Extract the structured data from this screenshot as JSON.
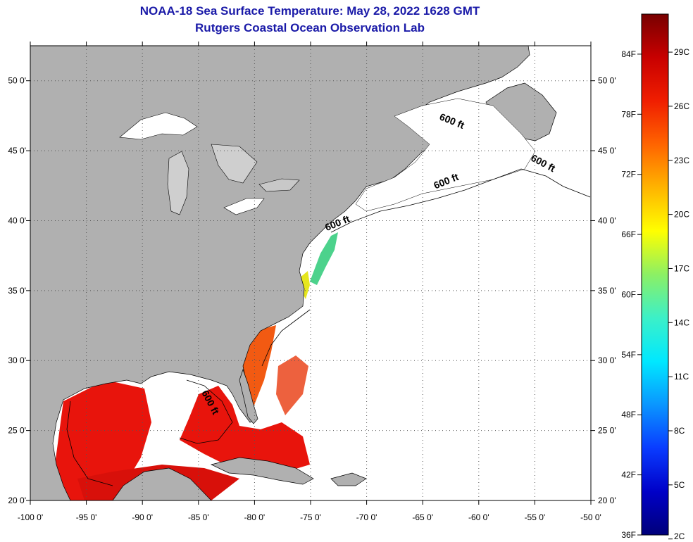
{
  "header": {
    "title": "NOAA-18 Sea Surface Temperature:  May 28, 2022 1628 GMT",
    "subtitle": "Rutgers Coastal Ocean Observation Lab"
  },
  "map": {
    "lon_range": [
      -100,
      -50
    ],
    "lat_range": [
      20,
      52.5
    ],
    "x_ticks": [
      {
        "value": -100,
        "label": "-100 0'"
      },
      {
        "value": -95,
        "label": "-95 0'"
      },
      {
        "value": -90,
        "label": "-90 0'"
      },
      {
        "value": -85,
        "label": "-85 0'"
      },
      {
        "value": -80,
        "label": "-80 0'"
      },
      {
        "value": -75,
        "label": "-75 0'"
      },
      {
        "value": -70,
        "label": "-70 0'"
      },
      {
        "value": -65,
        "label": "-65 0'"
      },
      {
        "value": -60,
        "label": "-60 0'"
      },
      {
        "value": -55,
        "label": "-55 0'"
      },
      {
        "value": -50,
        "label": "-50 0'"
      }
    ],
    "y_ticks": [
      {
        "value": 20,
        "label": "20 0'"
      },
      {
        "value": 25,
        "label": "25 0'"
      },
      {
        "value": 30,
        "label": "30 0'"
      },
      {
        "value": 35,
        "label": "35 0'"
      },
      {
        "value": 40,
        "label": "40 0'"
      },
      {
        "value": 45,
        "label": "45 0'"
      },
      {
        "value": 50,
        "label": "50 0'"
      }
    ],
    "grid": "dotted",
    "isobath_label": "600 ft",
    "isobath_labels": [
      {
        "text": "600 ft",
        "lon": -62.5,
        "lat": 46.9,
        "rotate": 22
      },
      {
        "text": "600 ft",
        "lon": -54.4,
        "lat": 43.9,
        "rotate": 28
      },
      {
        "text": "600 ft",
        "lon": -62.8,
        "lat": 42.6,
        "rotate": -22
      },
      {
        "text": "600 ft",
        "lon": -72.5,
        "lat": 39.6,
        "rotate": -22
      },
      {
        "text": "600 ft",
        "lon": -84.2,
        "lat": 26.9,
        "rotate": 62
      }
    ],
    "colors": {
      "land": "#b0b0b0",
      "no_data": "#ffffff",
      "warm_water": "#e8140c",
      "gulf_stream": "#f25a12"
    }
  },
  "colorbar": {
    "min_f": 36,
    "max_f": 88,
    "f_labels": [
      {
        "value": 36,
        "label": "36F"
      },
      {
        "value": 42,
        "label": "42F"
      },
      {
        "value": 48,
        "label": "48F"
      },
      {
        "value": 54,
        "label": "54F"
      },
      {
        "value": 60,
        "label": "60F"
      },
      {
        "value": 66,
        "label": "66F"
      },
      {
        "value": 72,
        "label": "72F"
      },
      {
        "value": 78,
        "label": "78F"
      },
      {
        "value": 84,
        "label": "84F"
      }
    ],
    "c_labels": [
      {
        "value": 2,
        "label": "2C"
      },
      {
        "value": 5,
        "label": "5C"
      },
      {
        "value": 8,
        "label": "8C"
      },
      {
        "value": 11,
        "label": "11C"
      },
      {
        "value": 14,
        "label": "14C"
      },
      {
        "value": 17,
        "label": "17C"
      },
      {
        "value": 20,
        "label": "20C"
      },
      {
        "value": 23,
        "label": "23C"
      },
      {
        "value": 26,
        "label": "26C"
      },
      {
        "value": 29,
        "label": "29C"
      }
    ],
    "gradient": [
      "#00007a",
      "#0000c8",
      "#0a3cff",
      "#0a96ff",
      "#00e8ff",
      "#3cf0c8",
      "#8cf064",
      "#ffff00",
      "#ffb400",
      "#ff6400",
      "#f01e00",
      "#c80000",
      "#780000"
    ]
  }
}
